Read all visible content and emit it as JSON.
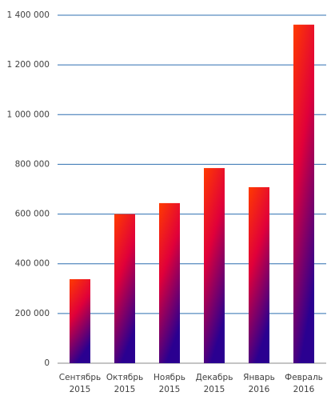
{
  "chart_data": {
    "type": "bar",
    "categories": [
      "Сентябрь 2015",
      "Октябрь 2015",
      "Ноябрь 2015",
      "Декабрь 2015",
      "Январь 2016",
      "Февраль 2016"
    ],
    "values": [
      338000,
      600000,
      644000,
      785000,
      708000,
      1362000
    ],
    "colors": [
      "#ff3a00",
      "#e0003a",
      "#2a0090"
    ],
    "ylim": [
      0,
      1400000
    ],
    "yticks": [
      0,
      {
        "value": 200000,
        "label": "200 000"
      },
      {
        "value": 400000,
        "label": "400 000"
      },
      {
        "value": 600000,
        "label": "600 000"
      },
      {
        "value": 800000,
        "label": "800 000"
      },
      {
        "value": 1000000,
        "label": "1 000 000"
      },
      {
        "value": 1200000,
        "label": "1 200 000"
      },
      {
        "value": 1400000,
        "label": "1 400 000"
      }
    ],
    "grid": true
  }
}
